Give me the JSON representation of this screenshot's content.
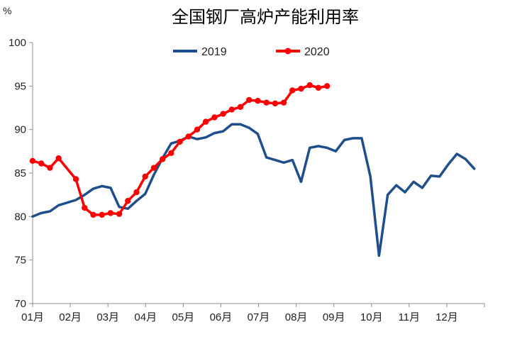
{
  "chart_data": {
    "type": "line",
    "title": "全国钢厂高炉产能利用率",
    "unit_label": "%",
    "xlabel": "",
    "ylabel": "",
    "ylim": [
      70,
      100
    ],
    "yticks": [
      70,
      75,
      80,
      85,
      90,
      95,
      100
    ],
    "xlim": [
      1,
      13
    ],
    "xtick_labels": [
      "01月",
      "02月",
      "03月",
      "04月",
      "05月",
      "06月",
      "07月",
      "08月",
      "09月",
      "10月",
      "11月",
      "12月"
    ],
    "grid": false,
    "legend_position": "top-center",
    "series": [
      {
        "name": "2019",
        "color": "#1f4e8c",
        "marker": false,
        "x": [
          1.0,
          1.23,
          1.46,
          1.69,
          1.92,
          2.15,
          2.38,
          2.61,
          2.84,
          3.07,
          3.3,
          3.53,
          3.76,
          3.99,
          4.22,
          4.45,
          4.68,
          4.91,
          5.14,
          5.37,
          5.6,
          5.83,
          6.06,
          6.29,
          6.52,
          6.75,
          6.98,
          7.21,
          7.44,
          7.67,
          7.9,
          8.13,
          8.36,
          8.59,
          8.82,
          9.05,
          9.28,
          9.51,
          9.74,
          9.97,
          10.2,
          10.43,
          10.66,
          10.89,
          11.12,
          11.35,
          11.58,
          11.81,
          12.04,
          12.27,
          12.5,
          12.73
        ],
        "values": [
          80.0,
          80.4,
          80.6,
          81.3,
          81.6,
          81.9,
          82.5,
          83.2,
          83.5,
          83.3,
          81.1,
          80.9,
          81.8,
          82.6,
          84.8,
          86.7,
          88.4,
          88.7,
          89.2,
          88.9,
          89.1,
          89.6,
          89.8,
          90.6,
          90.6,
          90.2,
          89.5,
          86.8,
          86.5,
          86.2,
          86.5,
          84.0,
          87.9,
          88.1,
          87.9,
          87.5,
          88.8,
          89.0,
          89.0,
          84.6,
          75.5,
          82.5,
          83.6,
          82.8,
          84.0,
          83.3,
          84.7,
          84.6,
          86.0,
          87.2,
          86.6,
          85.5
        ]
      },
      {
        "name": "2020",
        "color": "#ff0000",
        "marker": true,
        "x": [
          1.0,
          1.23,
          1.46,
          1.69,
          2.15,
          2.38,
          2.61,
          2.84,
          3.07,
          3.3,
          3.53,
          3.76,
          3.99,
          4.22,
          4.45,
          4.68,
          4.91,
          5.14,
          5.37,
          5.6,
          5.83,
          6.06,
          6.29,
          6.52,
          6.75,
          6.98,
          7.21,
          7.44,
          7.67,
          7.9,
          8.13,
          8.36,
          8.59,
          8.82
        ],
        "values": [
          86.4,
          86.1,
          85.6,
          86.7,
          84.3,
          81.0,
          80.2,
          80.2,
          80.4,
          80.3,
          81.8,
          82.8,
          84.6,
          85.6,
          86.6,
          87.3,
          88.6,
          89.2,
          90.0,
          90.9,
          91.4,
          91.8,
          92.3,
          92.6,
          93.4,
          93.3,
          93.1,
          93.0,
          93.1,
          94.5,
          94.7,
          95.1,
          94.8,
          95.0
        ]
      }
    ]
  }
}
